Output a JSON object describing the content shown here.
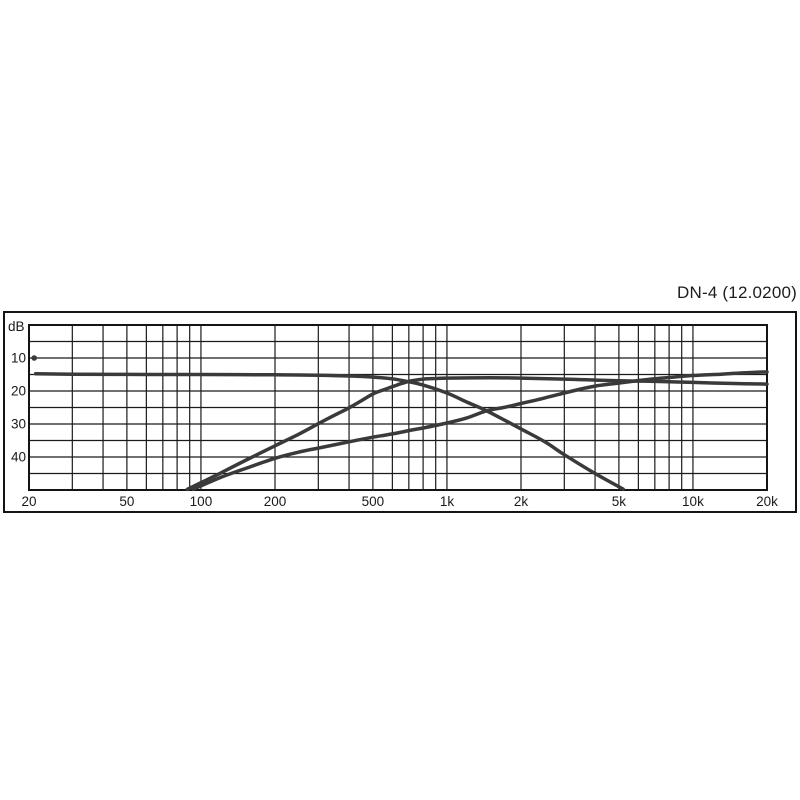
{
  "title": "DN-4 (12.0200)",
  "colors": {
    "background": "#ffffff",
    "grid": "#1b1b1b",
    "frame": "#141414",
    "curve": "#3a3a3a",
    "text": "#1a1a1a"
  },
  "chart_data": {
    "type": "line",
    "title": "DN-4 (12.0200)",
    "x_axis": {
      "scale": "log",
      "unit": "Hz",
      "min": 20,
      "max": 20000,
      "tick_values": [
        20,
        50,
        100,
        200,
        500,
        1000,
        2000,
        5000,
        10000,
        20000
      ],
      "tick_labels": [
        "20",
        "50",
        "100",
        "200",
        "500",
        "1k",
        "2k",
        "5k",
        "10k",
        "20k"
      ],
      "grid": "log-minor-lines-every-decade"
    },
    "y_axis": {
      "label": "dB",
      "min": 0,
      "max": 50,
      "direction": "values-increase-downward",
      "gridline_step": 5,
      "tick_labels": [
        10,
        20,
        30,
        40
      ]
    },
    "legend": "none",
    "series": [
      {
        "id": "lowpass-section",
        "description": "flat at ~15 dB then low-pass roll-off reaching floor near 5 kHz",
        "points": [
          [
            21.3,
            14.8
          ],
          [
            30,
            14.9
          ],
          [
            60,
            15.0
          ],
          [
            100,
            15.0
          ],
          [
            200,
            15.1
          ],
          [
            300,
            15.2
          ],
          [
            420,
            15.5
          ],
          [
            500,
            15.8
          ],
          [
            600,
            16.3
          ],
          [
            700,
            17.2
          ],
          [
            800,
            18.2
          ],
          [
            1000,
            20.6
          ],
          [
            1200,
            23.3
          ],
          [
            1450,
            26.0
          ],
          [
            2000,
            31.5
          ],
          [
            2500,
            35.4
          ],
          [
            3000,
            39.3
          ],
          [
            4000,
            45.0
          ],
          [
            5200,
            49.7
          ]
        ]
      },
      {
        "id": "highpass-steep-section",
        "description": "steep high-pass rising from ~90 Hz, flat ~16 dB above 1 kHz with slight sag to 17.9 dB at 20 kHz",
        "points": [
          [
            88,
            49.8
          ],
          [
            100,
            47.8
          ],
          [
            120,
            44.9
          ],
          [
            150,
            41.2
          ],
          [
            200,
            36.6
          ],
          [
            250,
            33.1
          ],
          [
            300,
            29.9
          ],
          [
            350,
            27.3
          ],
          [
            400,
            25.1
          ],
          [
            450,
            22.9
          ],
          [
            500,
            20.9
          ],
          [
            550,
            19.7
          ],
          [
            600,
            18.7
          ],
          [
            650,
            17.8
          ],
          [
            700,
            17.1
          ],
          [
            750,
            16.7
          ],
          [
            800,
            16.4
          ],
          [
            900,
            16.2
          ],
          [
            1000,
            16.1
          ],
          [
            1500,
            16.0
          ],
          [
            2000,
            16.1
          ],
          [
            3000,
            16.4
          ],
          [
            4000,
            16.7
          ],
          [
            5000,
            16.9
          ],
          [
            6000,
            17.0
          ],
          [
            7000,
            17.1
          ],
          [
            10000,
            17.4
          ],
          [
            14000,
            17.7
          ],
          [
            20000,
            17.9
          ]
        ]
      },
      {
        "id": "highpass-shallow-section",
        "description": "shallow ~6 dB/oct rise from ~90 Hz flattening to ~14.2 dB at 20 kHz",
        "points": [
          [
            93,
            49.8
          ],
          [
            120,
            46.2
          ],
          [
            150,
            43.6
          ],
          [
            200,
            40.4
          ],
          [
            250,
            38.5
          ],
          [
            300,
            37.3
          ],
          [
            400,
            35.4
          ],
          [
            500,
            34.0
          ],
          [
            600,
            33.0
          ],
          [
            700,
            32.0
          ],
          [
            800,
            31.2
          ],
          [
            1000,
            29.7
          ],
          [
            1200,
            28.2
          ],
          [
            1450,
            26.0
          ],
          [
            1700,
            25.0
          ],
          [
            2000,
            23.8
          ],
          [
            2500,
            22.1
          ],
          [
            3000,
            20.6
          ],
          [
            3500,
            19.4
          ],
          [
            4000,
            18.5
          ],
          [
            4500,
            18.0
          ],
          [
            5000,
            17.6
          ],
          [
            5500,
            17.2
          ],
          [
            6000,
            16.85
          ],
          [
            6500,
            16.55
          ],
          [
            7000,
            16.3
          ],
          [
            8000,
            15.9
          ],
          [
            10000,
            15.3
          ],
          [
            13000,
            14.9
          ],
          [
            16000,
            14.5
          ],
          [
            20000,
            14.2
          ]
        ]
      }
    ],
    "annotations": [
      {
        "id": "trace-start-dot",
        "f": 21,
        "db": 10,
        "shape": "small-dot-on-left-edge"
      }
    ]
  }
}
